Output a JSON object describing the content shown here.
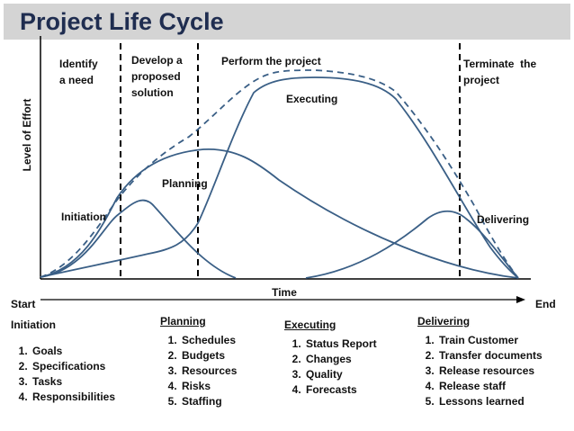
{
  "title": "Project Life Cycle",
  "ylabel": "Level of Effort",
  "xlabel": "Time",
  "start_label": "Start",
  "end_label": "End",
  "stages": {
    "identify": [
      "Identify",
      "a need"
    ],
    "develop": [
      "Develop a",
      "proposed",
      "solution"
    ],
    "perform": "Perform the project",
    "terminate": [
      "Terminate  the",
      "project"
    ]
  },
  "curve_labels": {
    "initiation": "Initiation",
    "planning": "Planning",
    "executing": "Executing",
    "delivering": "Delivering"
  },
  "colors": {
    "curve": "#3a5f86",
    "title": "#1f2d50",
    "title_bar": "#d4d4d4"
  },
  "phases": [
    {
      "heading": "Initiation",
      "underlined": false,
      "items": [
        "Goals",
        "Specifications",
        "Tasks",
        "Responsibilities"
      ]
    },
    {
      "heading": "Planning",
      "underlined": true,
      "items": [
        "Schedules",
        "Budgets",
        "Resources",
        "Risks",
        "Staffing"
      ]
    },
    {
      "heading": "Executing",
      "underlined": true,
      "items": [
        "Status Report",
        "Changes",
        "Quality",
        "Forecasts"
      ]
    },
    {
      "heading": "Delivering",
      "underlined": true,
      "items": [
        "Train Customer",
        "Transfer documents",
        "Release resources",
        "Release staff",
        "Lessons learned"
      ]
    }
  ]
}
